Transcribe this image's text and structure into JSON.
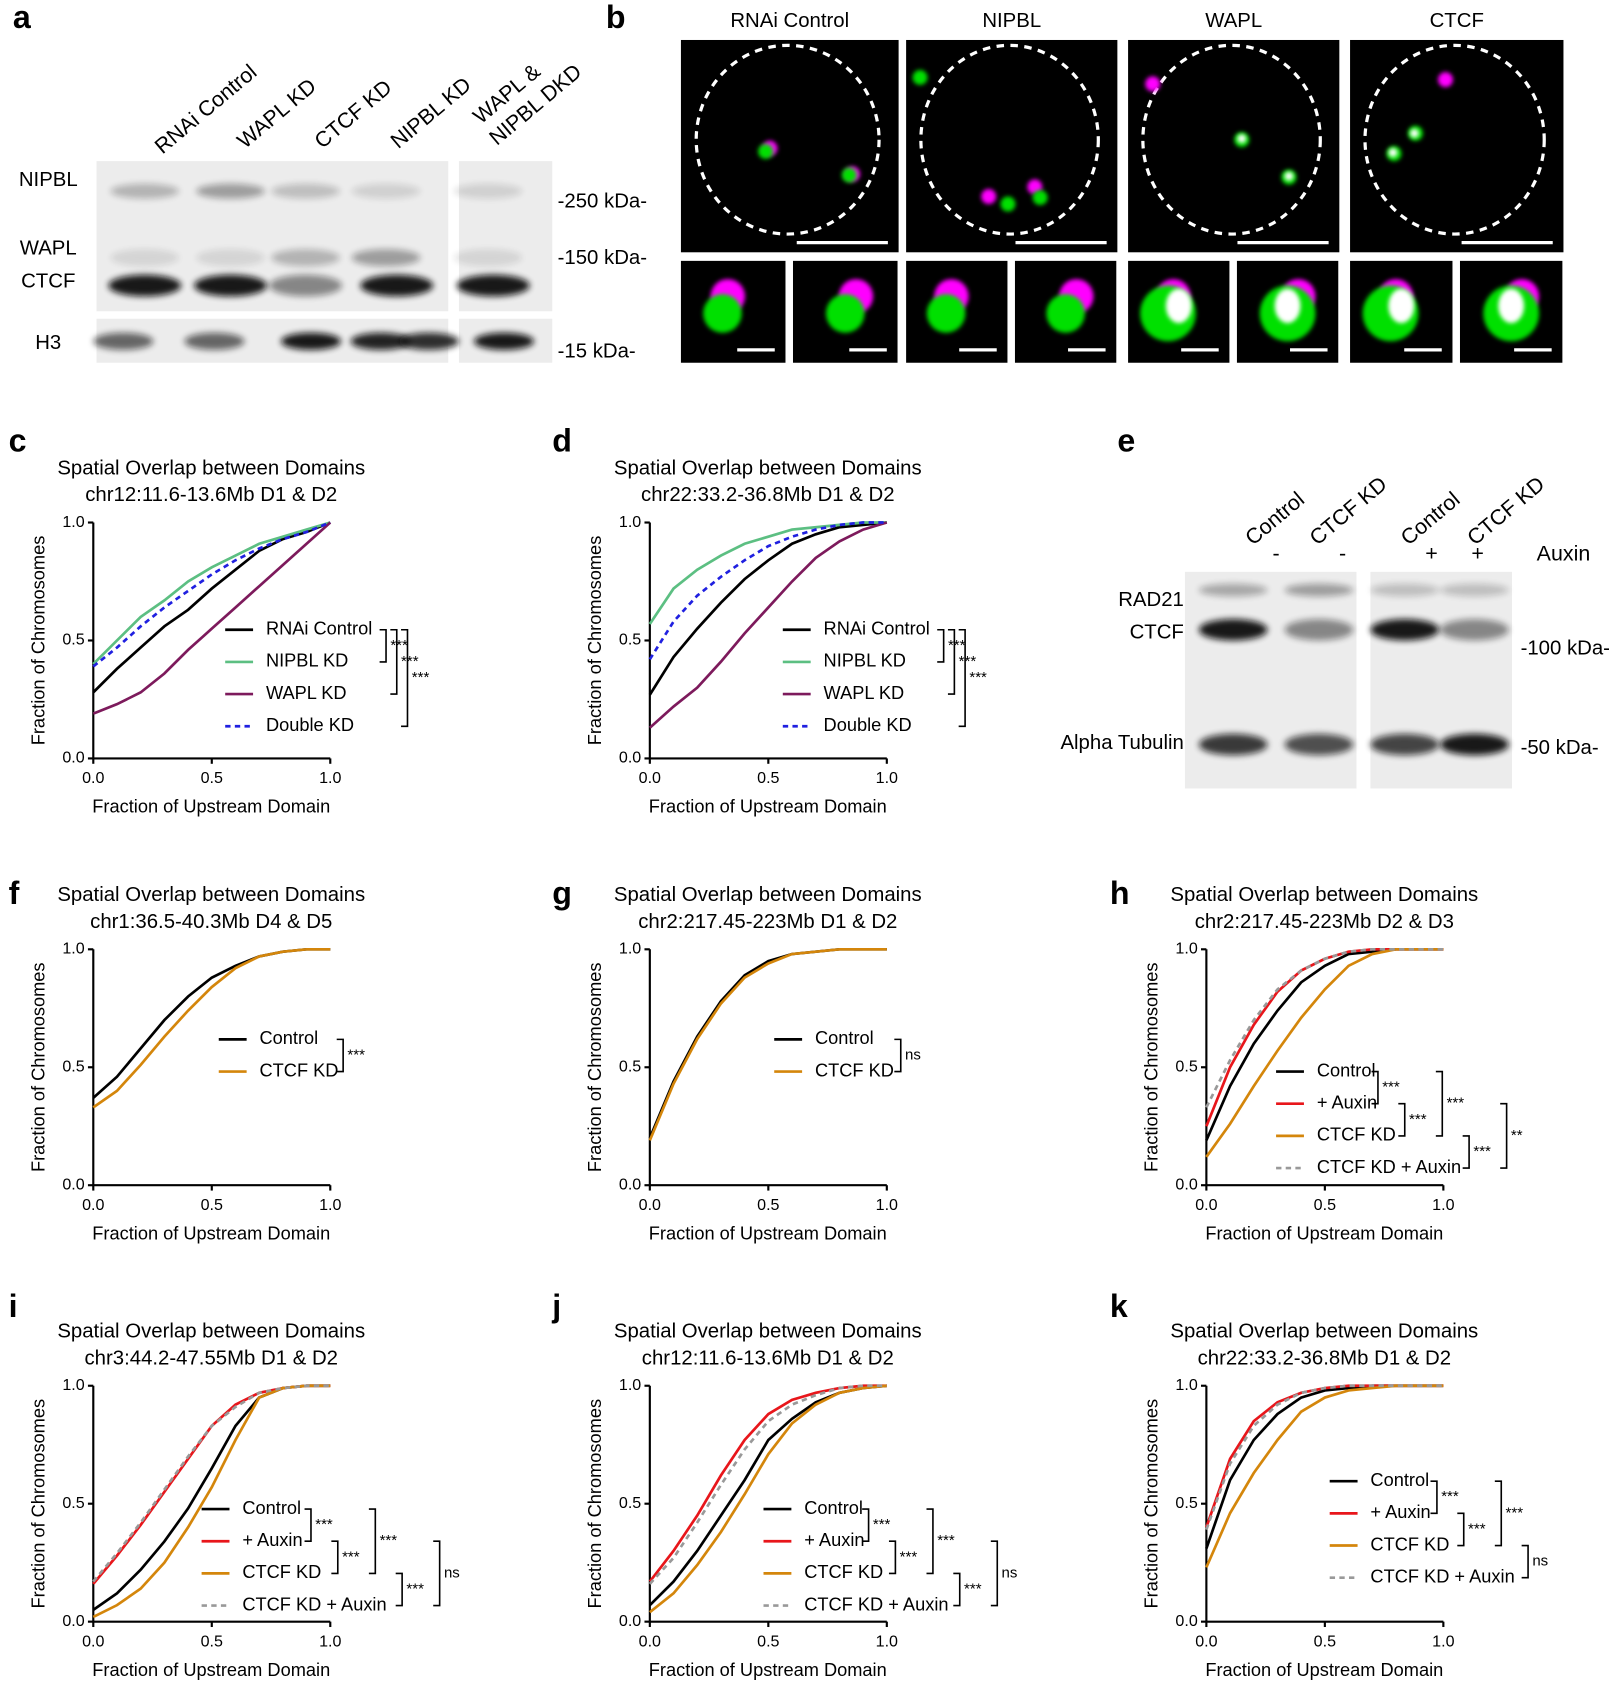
{
  "panel_a": {
    "letter": "a",
    "lanes": [
      "RNAi Control",
      "WAPL KD",
      "CTCF KD",
      "NIPBL KD",
      [
        "WAPL &",
        "NIPBL DKD"
      ]
    ],
    "proteins": [
      "NIPBL",
      "WAPL",
      "CTCF",
      "H3"
    ],
    "markers": [
      "-250 kDa-",
      "-150 kDa-",
      "-15 kDa-"
    ]
  },
  "panel_b": {
    "letter": "b",
    "columns": [
      "RNAi Control",
      "NIPBL",
      "WAPL",
      "CTCF"
    ]
  },
  "panel_e": {
    "letter": "e",
    "lanes": [
      "Control",
      "CTCF KD",
      "Control",
      "CTCF KD"
    ],
    "auxin": [
      "-",
      "-",
      "+",
      "+"
    ],
    "auxin_label": "Auxin",
    "proteins": [
      "RAD21",
      "CTCF",
      "Alpha Tubulin"
    ],
    "markers": [
      "-100 kDa-",
      "-50 kDa-"
    ]
  },
  "chart_data": [
    {
      "type": "line",
      "panel": "c",
      "title": "Spatial Overlap between Domains",
      "subtitle": "chr12:11.6-13.6Mb D1 & D2",
      "xlabel": "Fraction of Upstream Domain",
      "ylabel": "Fraction of Chromosomes",
      "xlim": [
        0,
        1
      ],
      "ylim": [
        0,
        1
      ],
      "xticks": [
        {
          "value": 0,
          "label": "0.0"
        },
        {
          "value": 0.5,
          "label": "0.5"
        },
        {
          "value": 1,
          "label": "1.0"
        }
      ],
      "yticks": [
        {
          "value": 0,
          "label": "0.0"
        },
        {
          "value": 0.5,
          "label": "0.5"
        },
        {
          "value": 1,
          "label": "1.0"
        }
      ],
      "x": [
        0,
        0.1,
        0.2,
        0.3,
        0.4,
        0.5,
        0.6,
        0.7,
        0.8,
        0.9,
        1
      ],
      "series": [
        {
          "name": "RNAi Control",
          "color": "#000000",
          "linestyle": "solid",
          "values": [
            0.28,
            0.38,
            0.47,
            0.56,
            0.63,
            0.72,
            0.8,
            0.88,
            0.93,
            0.96,
            1
          ]
        },
        {
          "name": "NIPBL KD",
          "color": "#5cbf82",
          "linestyle": "solid",
          "values": [
            0.4,
            0.5,
            0.6,
            0.67,
            0.75,
            0.81,
            0.86,
            0.91,
            0.94,
            0.97,
            1
          ]
        },
        {
          "name": "WAPL KD",
          "color": "#7d1a5c",
          "linestyle": "solid",
          "values": [
            0.19,
            0.23,
            0.28,
            0.36,
            0.46,
            0.55,
            0.64,
            0.73,
            0.82,
            0.91,
            1
          ]
        },
        {
          "name": "Double KD",
          "color": "#2020e0",
          "linestyle": "dashed",
          "values": [
            0.39,
            0.47,
            0.56,
            0.64,
            0.71,
            0.78,
            0.84,
            0.89,
            0.93,
            0.96,
            1
          ]
        }
      ],
      "significance": [
        "***",
        "***",
        "***"
      ]
    },
    {
      "type": "line",
      "panel": "d",
      "title": "Spatial Overlap between Domains",
      "subtitle": "chr22:33.2-36.8Mb D1 & D2",
      "xlabel": "Fraction of Upstream Domain",
      "ylabel": "Fraction of Chromosomes",
      "xlim": [
        0,
        1
      ],
      "ylim": [
        0,
        1
      ],
      "xticks": [
        {
          "value": 0,
          "label": "0.0"
        },
        {
          "value": 0.5,
          "label": "0.5"
        },
        {
          "value": 1,
          "label": "1.0"
        }
      ],
      "yticks": [
        {
          "value": 0,
          "label": "0.0"
        },
        {
          "value": 0.5,
          "label": "0.5"
        },
        {
          "value": 1,
          "label": "1.0"
        }
      ],
      "x": [
        0,
        0.1,
        0.2,
        0.3,
        0.4,
        0.5,
        0.6,
        0.7,
        0.8,
        0.9,
        1
      ],
      "series": [
        {
          "name": "RNAi Control",
          "color": "#000000",
          "linestyle": "solid",
          "values": [
            0.27,
            0.43,
            0.55,
            0.66,
            0.76,
            0.84,
            0.91,
            0.95,
            0.98,
            0.99,
            1
          ]
        },
        {
          "name": "NIPBL KD",
          "color": "#5cbf82",
          "linestyle": "solid",
          "values": [
            0.57,
            0.72,
            0.8,
            0.86,
            0.91,
            0.94,
            0.97,
            0.98,
            0.99,
            1,
            1
          ]
        },
        {
          "name": "WAPL KD",
          "color": "#7d1a5c",
          "linestyle": "solid",
          "values": [
            0.13,
            0.22,
            0.3,
            0.41,
            0.53,
            0.64,
            0.75,
            0.85,
            0.92,
            0.97,
            1
          ]
        },
        {
          "name": "Double KD",
          "color": "#2020e0",
          "linestyle": "dashed",
          "values": [
            0.42,
            0.58,
            0.69,
            0.77,
            0.84,
            0.9,
            0.94,
            0.97,
            0.99,
            1,
            1
          ]
        }
      ],
      "significance": [
        "***",
        "***",
        "***"
      ]
    },
    {
      "type": "line",
      "panel": "f",
      "title": "Spatial Overlap between Domains",
      "subtitle": "chr1:36.5-40.3Mb D4 & D5",
      "xlabel": "Fraction of Upstream Domain",
      "ylabel": "Fraction of Chromosomes",
      "xlim": [
        0,
        1
      ],
      "ylim": [
        0,
        1
      ],
      "xticks": [
        {
          "value": 0,
          "label": "0.0"
        },
        {
          "value": 0.5,
          "label": "0.5"
        },
        {
          "value": 1,
          "label": "1.0"
        }
      ],
      "yticks": [
        {
          "value": 0,
          "label": "0.0"
        },
        {
          "value": 0.5,
          "label": "0.5"
        },
        {
          "value": 1,
          "label": "1.0"
        }
      ],
      "x": [
        0,
        0.1,
        0.2,
        0.3,
        0.4,
        0.5,
        0.6,
        0.7,
        0.8,
        0.9,
        1
      ],
      "series": [
        {
          "name": "Control",
          "color": "#000000",
          "linestyle": "solid",
          "values": [
            0.37,
            0.46,
            0.58,
            0.7,
            0.8,
            0.88,
            0.93,
            0.97,
            0.99,
            1,
            1
          ]
        },
        {
          "name": "CTCF KD",
          "color": "#d4860b",
          "linestyle": "solid",
          "values": [
            0.33,
            0.4,
            0.51,
            0.63,
            0.74,
            0.84,
            0.92,
            0.97,
            0.99,
            1,
            1
          ]
        }
      ],
      "significance": [
        "***"
      ]
    },
    {
      "type": "line",
      "panel": "g",
      "title": "Spatial Overlap between Domains",
      "subtitle": "chr2:217.45-223Mb D1 & D2",
      "xlabel": "Fraction of Upstream Domain",
      "ylabel": "Fraction of Chromosomes",
      "xlim": [
        0,
        1
      ],
      "ylim": [
        0,
        1
      ],
      "xticks": [
        {
          "value": 0,
          "label": "0.0"
        },
        {
          "value": 0.5,
          "label": "0.5"
        },
        {
          "value": 1,
          "label": "1.0"
        }
      ],
      "yticks": [
        {
          "value": 0,
          "label": "0.0"
        },
        {
          "value": 0.5,
          "label": "0.5"
        },
        {
          "value": 1,
          "label": "1.0"
        }
      ],
      "x": [
        0,
        0.1,
        0.2,
        0.3,
        0.4,
        0.5,
        0.6,
        0.7,
        0.8,
        0.9,
        1
      ],
      "series": [
        {
          "name": "Control",
          "color": "#000000",
          "linestyle": "solid",
          "values": [
            0.2,
            0.44,
            0.63,
            0.78,
            0.89,
            0.95,
            0.98,
            0.99,
            1,
            1,
            1
          ]
        },
        {
          "name": "CTCF KD",
          "color": "#d4860b",
          "linestyle": "solid",
          "values": [
            0.19,
            0.43,
            0.62,
            0.77,
            0.88,
            0.94,
            0.98,
            0.99,
            1,
            1,
            1
          ]
        }
      ],
      "significance": [
        "ns"
      ]
    },
    {
      "type": "line",
      "panel": "h",
      "title": "Spatial Overlap between Domains",
      "subtitle": "chr2:217.45-223Mb D2 & D3",
      "xlabel": "Fraction of Upstream Domain",
      "ylabel": "Fraction of Chromosomes",
      "xlim": [
        0,
        1
      ],
      "ylim": [
        0,
        1
      ],
      "xticks": [
        {
          "value": 0,
          "label": "0.0"
        },
        {
          "value": 0.5,
          "label": "0.5"
        },
        {
          "value": 1,
          "label": "1.0"
        }
      ],
      "yticks": [
        {
          "value": 0,
          "label": "0.0"
        },
        {
          "value": 0.5,
          "label": "0.5"
        },
        {
          "value": 1,
          "label": "1.0"
        }
      ],
      "x": [
        0,
        0.1,
        0.2,
        0.3,
        0.4,
        0.5,
        0.6,
        0.7,
        0.8,
        0.9,
        1
      ],
      "series": [
        {
          "name": "Control",
          "color": "#000000",
          "linestyle": "solid",
          "values": [
            0.19,
            0.42,
            0.6,
            0.74,
            0.86,
            0.93,
            0.98,
            0.99,
            1,
            1,
            1
          ]
        },
        {
          "name": "+ Auxin",
          "color": "#e8161b",
          "linestyle": "solid",
          "values": [
            0.25,
            0.5,
            0.68,
            0.82,
            0.91,
            0.96,
            0.99,
            1,
            1,
            1,
            1
          ]
        },
        {
          "name": "CTCF KD",
          "color": "#d4860b",
          "linestyle": "solid",
          "values": [
            0.12,
            0.26,
            0.42,
            0.57,
            0.71,
            0.83,
            0.93,
            0.98,
            1,
            1,
            1
          ]
        },
        {
          "name": "CTCF KD + Auxin",
          "color": "#999999",
          "linestyle": "dashed",
          "values": [
            0.33,
            0.53,
            0.7,
            0.83,
            0.91,
            0.96,
            0.99,
            1,
            1,
            1,
            1
          ]
        }
      ],
      "significance": [
        "***",
        "***",
        "***",
        "***",
        "**"
      ]
    },
    {
      "type": "line",
      "panel": "i",
      "title": "Spatial Overlap between Domains",
      "subtitle": "chr3:44.2-47.55Mb D1 & D2",
      "xlabel": "Fraction of Upstream Domain",
      "ylabel": "Fraction of Chromosomes",
      "xlim": [
        0,
        1
      ],
      "ylim": [
        0,
        1
      ],
      "xticks": [
        {
          "value": 0,
          "label": "0.0"
        },
        {
          "value": 0.5,
          "label": "0.5"
        },
        {
          "value": 1,
          "label": "1.0"
        }
      ],
      "yticks": [
        {
          "value": 0,
          "label": "0.0"
        },
        {
          "value": 0.5,
          "label": "0.5"
        },
        {
          "value": 1,
          "label": "1.0"
        }
      ],
      "x": [
        0,
        0.1,
        0.2,
        0.3,
        0.4,
        0.5,
        0.6,
        0.7,
        0.8,
        0.9,
        1
      ],
      "series": [
        {
          "name": "Control",
          "color": "#000000",
          "linestyle": "solid",
          "values": [
            0.05,
            0.12,
            0.22,
            0.34,
            0.48,
            0.65,
            0.83,
            0.95,
            0.99,
            1,
            1
          ]
        },
        {
          "name": "+ Auxin",
          "color": "#e8161b",
          "linestyle": "solid",
          "values": [
            0.16,
            0.28,
            0.41,
            0.55,
            0.69,
            0.83,
            0.92,
            0.97,
            0.99,
            1,
            1
          ]
        },
        {
          "name": "CTCF KD",
          "color": "#d4860b",
          "linestyle": "solid",
          "values": [
            0.02,
            0.07,
            0.14,
            0.25,
            0.4,
            0.57,
            0.77,
            0.95,
            0.99,
            1,
            1
          ]
        },
        {
          "name": "CTCF KD + Auxin",
          "color": "#999999",
          "linestyle": "dashed",
          "values": [
            0.17,
            0.29,
            0.42,
            0.56,
            0.7,
            0.83,
            0.91,
            0.97,
            0.99,
            1,
            1
          ]
        }
      ],
      "significance": [
        "***",
        "***",
        "***",
        "***",
        "ns"
      ]
    },
    {
      "type": "line",
      "panel": "j",
      "title": "Spatial Overlap between Domains",
      "subtitle": "chr12:11.6-13.6Mb D1 & D2",
      "xlabel": "Fraction of Upstream Domain",
      "ylabel": "Fraction of Chromosomes",
      "xlim": [
        0,
        1
      ],
      "ylim": [
        0,
        1
      ],
      "xticks": [
        {
          "value": 0,
          "label": "0.0"
        },
        {
          "value": 0.5,
          "label": "0.5"
        },
        {
          "value": 1,
          "label": "1.0"
        }
      ],
      "yticks": [
        {
          "value": 0,
          "label": "0.0"
        },
        {
          "value": 0.5,
          "label": "0.5"
        },
        {
          "value": 1,
          "label": "1.0"
        }
      ],
      "x": [
        0,
        0.1,
        0.2,
        0.3,
        0.4,
        0.5,
        0.6,
        0.7,
        0.8,
        0.9,
        1
      ],
      "series": [
        {
          "name": "Control",
          "color": "#000000",
          "linestyle": "solid",
          "values": [
            0.07,
            0.17,
            0.3,
            0.45,
            0.6,
            0.77,
            0.86,
            0.93,
            0.97,
            0.99,
            1
          ]
        },
        {
          "name": "+ Auxin",
          "color": "#e8161b",
          "linestyle": "solid",
          "values": [
            0.17,
            0.3,
            0.45,
            0.62,
            0.77,
            0.88,
            0.94,
            0.97,
            0.99,
            1,
            1
          ]
        },
        {
          "name": "CTCF KD",
          "color": "#d4860b",
          "linestyle": "solid",
          "values": [
            0.04,
            0.12,
            0.24,
            0.38,
            0.54,
            0.71,
            0.84,
            0.92,
            0.97,
            0.99,
            1
          ]
        },
        {
          "name": "CTCF KD + Auxin",
          "color": "#999999",
          "linestyle": "dashed",
          "values": [
            0.16,
            0.27,
            0.42,
            0.58,
            0.73,
            0.85,
            0.92,
            0.96,
            0.99,
            1,
            1
          ]
        }
      ],
      "significance": [
        "***",
        "***",
        "***",
        "***",
        "ns"
      ]
    },
    {
      "type": "line",
      "panel": "k",
      "title": "Spatial Overlap between Domains",
      "subtitle": "chr22:33.2-36.8Mb D1 & D2",
      "xlabel": "Fraction of Upstream Domain",
      "ylabel": "Fraction of Chromosomes",
      "xlim": [
        0,
        1
      ],
      "ylim": [
        0,
        1
      ],
      "xticks": [
        {
          "value": 0,
          "label": "0.0"
        },
        {
          "value": 0.5,
          "label": "0.5"
        },
        {
          "value": 1,
          "label": "1.0"
        }
      ],
      "yticks": [
        {
          "value": 0,
          "label": "0.0"
        },
        {
          "value": 0.5,
          "label": "0.5"
        },
        {
          "value": 1,
          "label": "1.0"
        }
      ],
      "x": [
        0,
        0.1,
        0.2,
        0.3,
        0.4,
        0.5,
        0.6,
        0.7,
        0.8,
        0.9,
        1
      ],
      "series": [
        {
          "name": "Control",
          "color": "#000000",
          "linestyle": "solid",
          "values": [
            0.31,
            0.6,
            0.77,
            0.88,
            0.95,
            0.98,
            0.99,
            1,
            1,
            1,
            1
          ]
        },
        {
          "name": "+ Auxin",
          "color": "#e8161b",
          "linestyle": "solid",
          "values": [
            0.4,
            0.69,
            0.85,
            0.93,
            0.97,
            0.99,
            1,
            1,
            1,
            1,
            1
          ]
        },
        {
          "name": "CTCF KD",
          "color": "#d4860b",
          "linestyle": "solid",
          "values": [
            0.23,
            0.46,
            0.63,
            0.77,
            0.89,
            0.95,
            0.98,
            0.99,
            1,
            1,
            1
          ]
        },
        {
          "name": "CTCF KD + Auxin",
          "color": "#999999",
          "linestyle": "dashed",
          "values": [
            0.39,
            0.67,
            0.83,
            0.92,
            0.97,
            0.99,
            1,
            1,
            1,
            1,
            1
          ]
        }
      ],
      "significance": [
        "***",
        "***",
        "***",
        "ns"
      ]
    }
  ]
}
